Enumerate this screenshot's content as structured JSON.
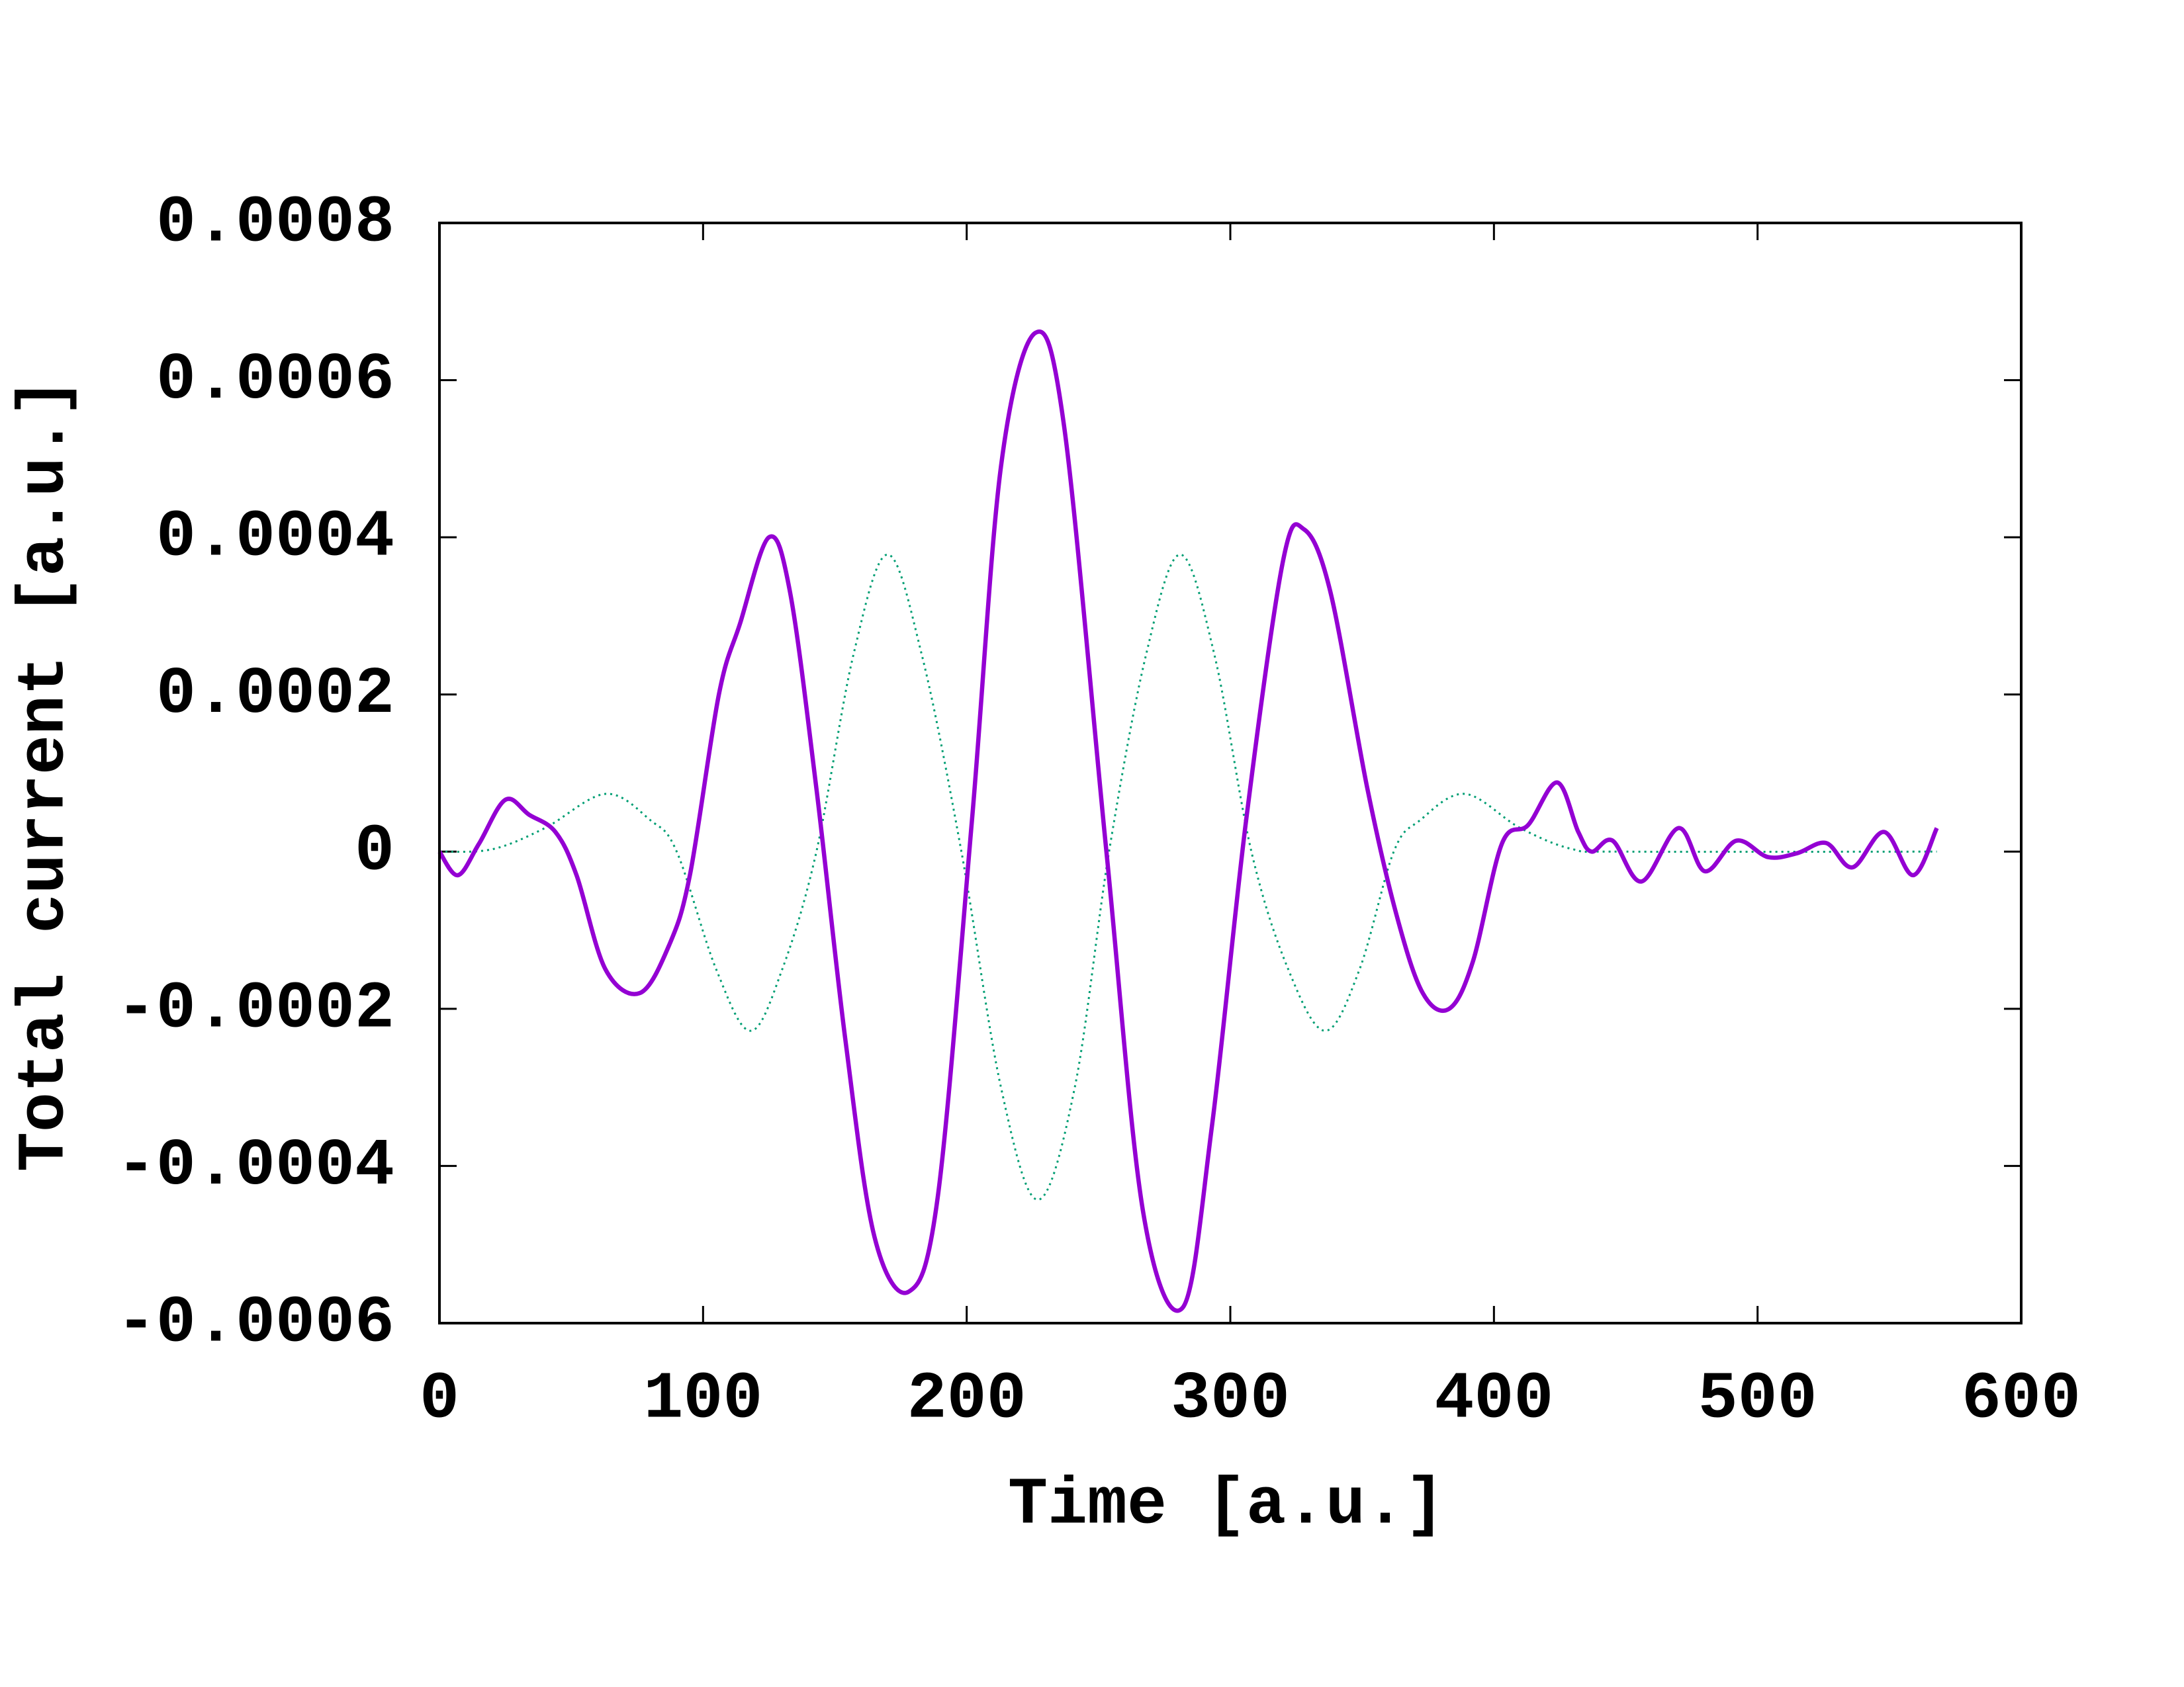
{
  "chart_data": {
    "type": "line",
    "x_label": "Time [a.u.]",
    "y_label": "Total current [a.u.]",
    "xlim": [
      0,
      600
    ],
    "xticks": [
      0,
      100,
      200,
      300,
      400,
      500,
      600
    ],
    "ylim": [
      -0.0006,
      0.0008
    ],
    "yticks": [
      -0.0006,
      -0.0004,
      -0.0002,
      0,
      0.0002,
      0.0004,
      0.0006,
      0.0008
    ],
    "grid": false,
    "series": [
      {
        "color": "#009e73",
        "style": "dotted",
        "x": [
          0,
          20,
          40,
          63,
          80,
          90,
          105,
          118,
          130,
          143,
          157,
          170,
          183,
          198,
          213,
          227,
          241,
          254,
          268,
          281,
          294,
          308,
          322,
          336,
          349,
          362,
          372,
          389,
          410,
          430,
          450,
          568
        ],
        "values": [
          0,
          3e-06,
          3e-05,
          7.35e-05,
          4e-05,
          0,
          -0.00015,
          -0.000228,
          -0.00015,
          0,
          0.00025,
          0.000378,
          0.00025,
          0,
          -0.0003,
          -0.000443,
          -0.0003,
          0,
          0.00025,
          0.000378,
          0.00025,
          0,
          -0.00015,
          -0.000228,
          -0.00015,
          0,
          4e-05,
          7.35e-05,
          3e-05,
          3e-06,
          0,
          0
        ]
      },
      {
        "color": "#9400d3",
        "style": "solid",
        "x": [
          0,
          7,
          15,
          25,
          34,
          44,
          52,
          63,
          76,
          87,
          95,
          106,
          114,
          125,
          133,
          143,
          154,
          165,
          178,
          189,
          202,
          213,
          226,
          237,
          253,
          267,
          282,
          293,
          306,
          320,
          328,
          338,
          352,
          363,
          373,
          383,
          392,
          403,
          413,
          424,
          432,
          437,
          445,
          456,
          470,
          480,
          492,
          504,
          515,
          526,
          536,
          548,
          559,
          568
        ],
        "values": [
          0,
          -3e-05,
          1e-05,
          6.6e-05,
          4.7e-05,
          2.5e-05,
          -3e-05,
          -0.00015,
          -0.00018,
          -0.00012,
          -3e-05,
          0.0002,
          0.00029,
          0.0004,
          0.00033,
          8e-05,
          -0.00024,
          -0.00049,
          -0.00056,
          -0.00044,
          4e-05,
          0.00049,
          0.00066,
          0.00054,
          0,
          -0.00046,
          -0.00058,
          -0.00035,
          4e-05,
          0.00037,
          0.00041,
          0.00033,
          8e-05,
          -8e-05,
          -0.00018,
          -0.0002,
          -0.00014,
          1e-05,
          3.4e-05,
          8.8e-05,
          2.5e-05,
          0,
          1.4e-05,
          -3.8e-05,
          3e-05,
          -2.5e-05,
          1.4e-05,
          -7e-06,
          -2e-06,
          1.1e-05,
          -2e-05,
          2.5e-05,
          -3e-05,
          3e-05
        ]
      }
    ]
  }
}
